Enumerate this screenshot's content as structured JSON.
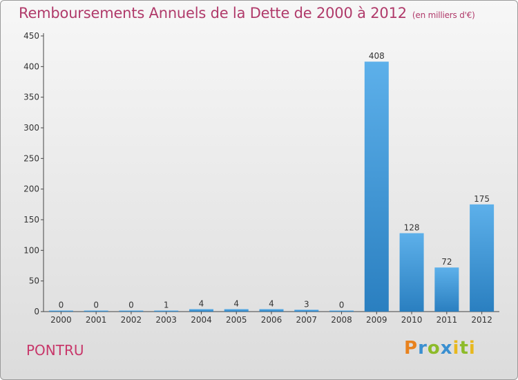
{
  "header": {
    "title": "Remboursements Annuels de la Dette de 2000 à 2012",
    "unit": "(en milliers d'€)"
  },
  "commune": "PONTRU",
  "logo": {
    "text": "Proxiti"
  },
  "colors": {
    "title": "#b03a6a",
    "bar_top": "#5db0ea",
    "bar_bottom": "#2a7fc0",
    "axis": "#444444"
  },
  "chart_data": {
    "type": "bar",
    "title": "Remboursements Annuels de la Dette de 2000 à 2012",
    "xlabel": "",
    "ylabel": "",
    "categories": [
      "2000",
      "2001",
      "2002",
      "2003",
      "2004",
      "2005",
      "2006",
      "2007",
      "2008",
      "2009",
      "2010",
      "2011",
      "2012"
    ],
    "values": [
      0,
      0,
      0,
      1,
      4,
      4,
      4,
      3,
      0,
      408,
      128,
      72,
      175
    ],
    "ylim": [
      0,
      450
    ],
    "yticks": [
      0,
      50,
      100,
      150,
      200,
      250,
      300,
      350,
      400,
      450
    ],
    "grid": false,
    "legend": "none"
  }
}
